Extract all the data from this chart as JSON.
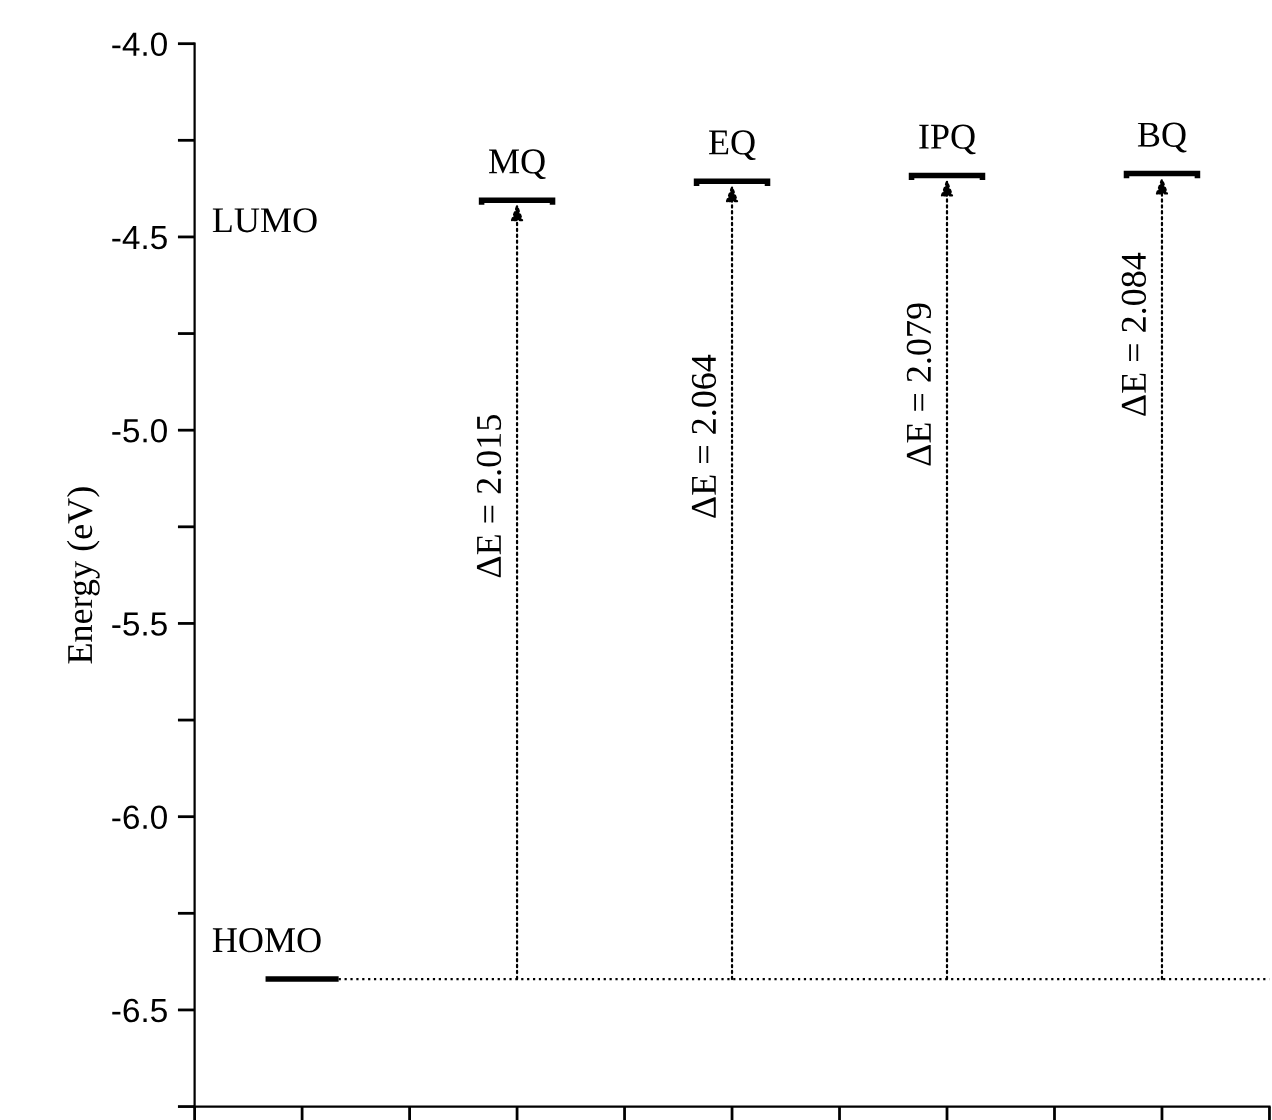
{
  "chart_data": {
    "type": "bar",
    "ylabel": "Energy (eV)",
    "categories": [
      "MQ",
      "EQ",
      "IPQ",
      "BQ"
    ],
    "base": [
      -6.42,
      -6.42,
      -6.42,
      -6.42
    ],
    "values": [
      2.015,
      2.064,
      2.079,
      2.084
    ],
    "value_labels": [
      "ΔE = 2.015",
      "ΔE = 2.064",
      "ΔE = 2.079",
      "ΔE = 2.084"
    ],
    "color": "#000000",
    "ref_lines": [
      {
        "axis": "y",
        "value": -6.42,
        "label": "HOMO",
        "line_style": "dotted",
        "color": "#000000"
      }
    ],
    "annotations": [
      "LUMO"
    ],
    "ylim": [
      -6.75,
      -4.0
    ],
    "yticks": [
      {
        "value": -6.5,
        "label": "-6.5"
      },
      {
        "value": -6.0,
        "label": "-6.0"
      },
      {
        "value": -5.5,
        "label": "-5.5"
      },
      {
        "value": -5.0,
        "label": "-5.0"
      },
      {
        "value": -4.5,
        "label": "-4.5"
      },
      {
        "value": -4.0,
        "label": "-4.0"
      }
    ],
    "tick_labels": "y"
  }
}
